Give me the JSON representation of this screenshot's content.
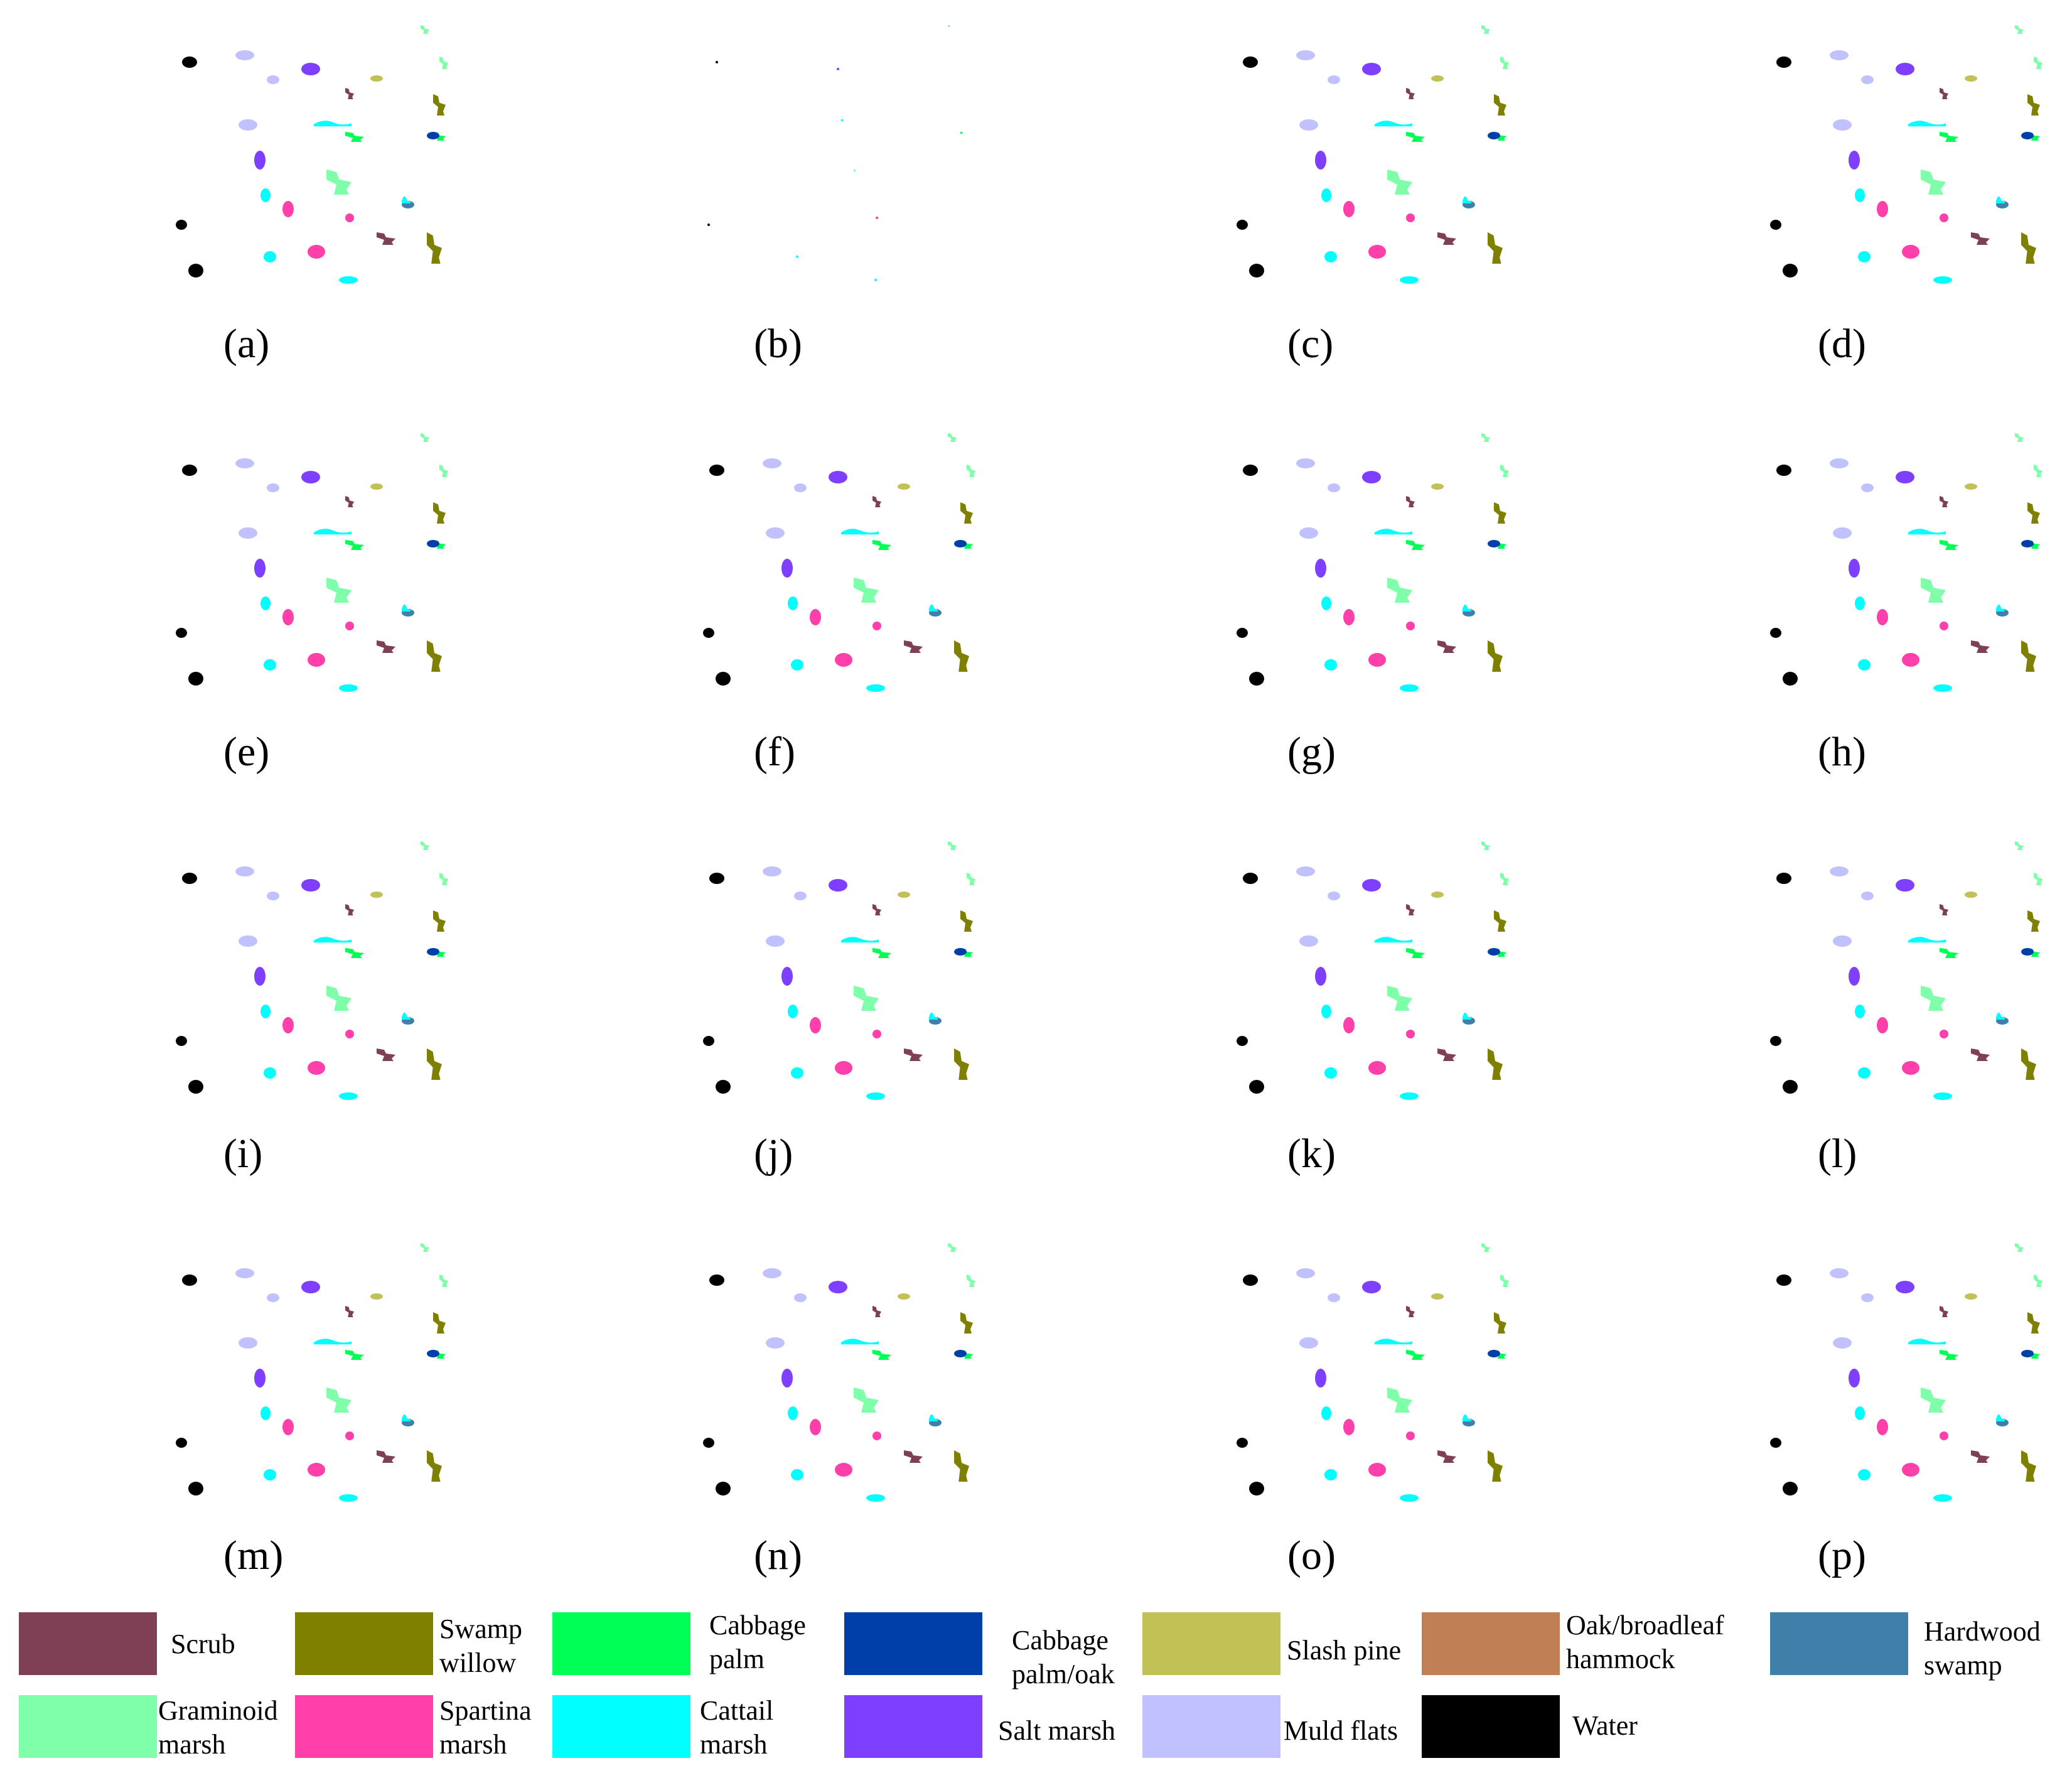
{
  "panels": [
    {
      "label": "(a)"
    },
    {
      "label": "(b)"
    },
    {
      "label": "(c)"
    },
    {
      "label": "(d)"
    },
    {
      "label": "(e)"
    },
    {
      "label": "(f)"
    },
    {
      "label": "(g)"
    },
    {
      "label": "(h)"
    },
    {
      "label": "(i)"
    },
    {
      "label": "(j)"
    },
    {
      "label": "(k)"
    },
    {
      "label": "(l)"
    },
    {
      "label": "(m)"
    },
    {
      "label": "(n)"
    },
    {
      "label": "(o)"
    },
    {
      "label": "(p)"
    }
  ],
  "legend": [
    {
      "label": "Scrub",
      "color": "#7f3f55"
    },
    {
      "label": "Swamp willow",
      "color": "#7f7f00"
    },
    {
      "label": "Cabbage palm",
      "color": "#00ff55"
    },
    {
      "label": "Cabbage palm/oak",
      "color": "#003fa9"
    },
    {
      "label": "Slash pine",
      "color": "#c1c155"
    },
    {
      "label": "Oak/broadleaf hammock",
      "color": "#c17f55"
    },
    {
      "label": "Hardwood swamp",
      "color": "#3f7faa"
    },
    {
      "label": "Graminoid marsh",
      "color": "#7fffaa"
    },
    {
      "label": "Spartina marsh",
      "color": "#ff3faa"
    },
    {
      "label": "Cattail marsh",
      "color": "#00ffff"
    },
    {
      "label": "Salt marsh",
      "color": "#7f3fff"
    },
    {
      "label": "Muld flats",
      "color": "#c1c1ff"
    },
    {
      "label": "Water",
      "color": "#000000"
    }
  ]
}
